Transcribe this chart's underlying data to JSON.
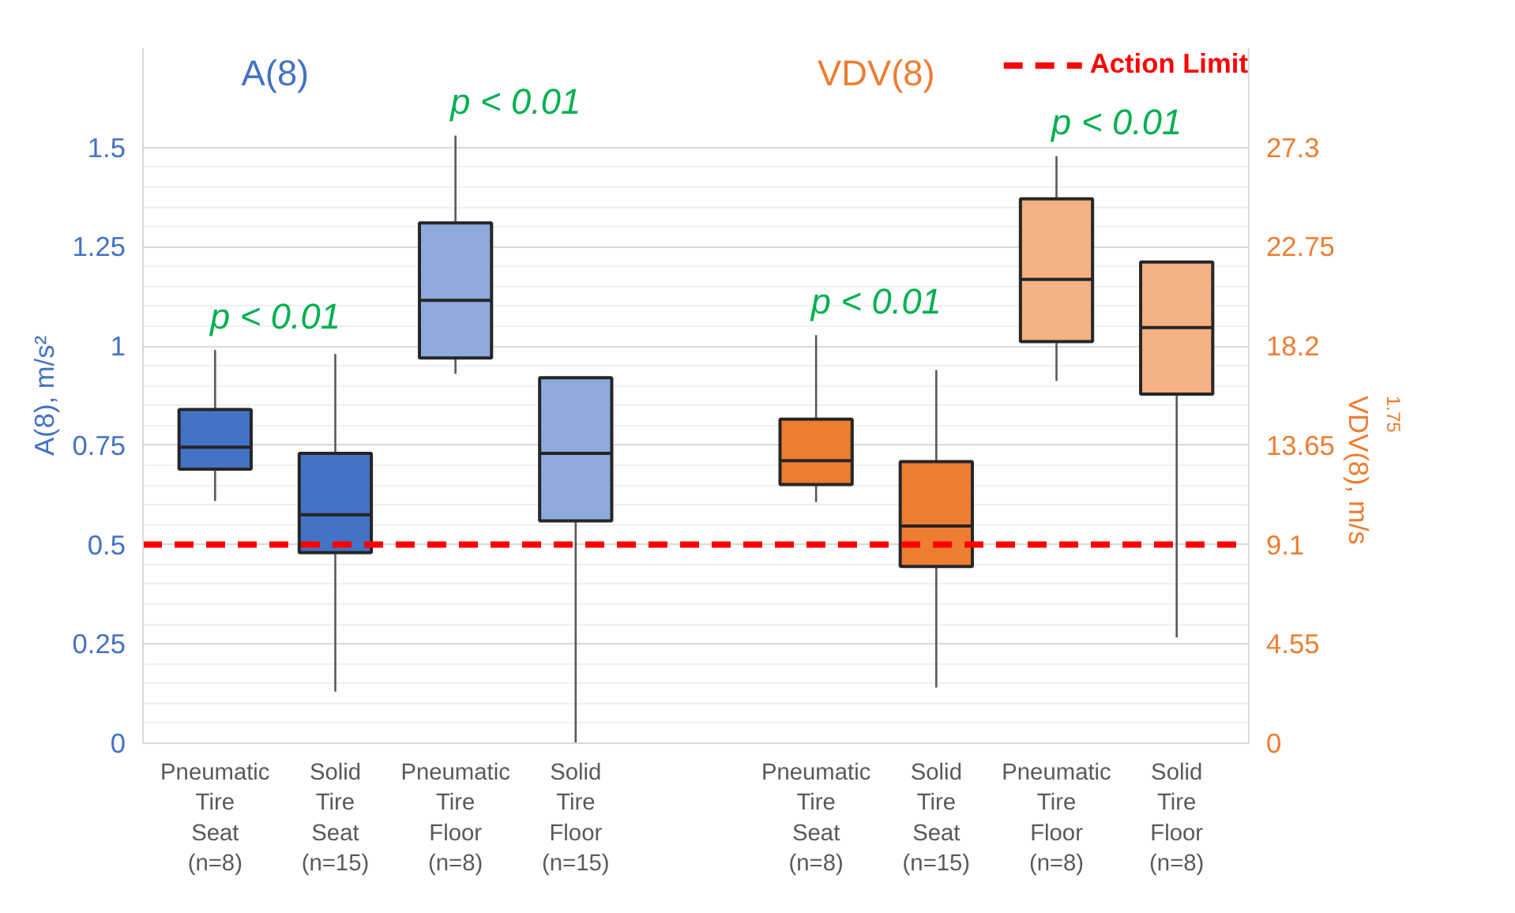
{
  "chart_data": {
    "type": "box",
    "categories": [
      "Pneumatic\nTire\nSeat\n(n=8)",
      "Solid\nTire\nSeat\n(n=15)",
      "Pneumatic\nTire\nFloor\n(n=8)",
      "Solid\nTire\nFloor\n(n=15)",
      null,
      "Pneumatic\nTire\nSeat\n(n=8)",
      "Solid\nTire\nSeat\n(n=15)",
      "Pneumatic\nTire\nFloor\n(n=8)",
      "Solid\nTire\nFloor\n(n=8)"
    ],
    "series": [
      {
        "name": "A(8)",
        "color": "#4472c4",
        "colors": [
          "#4472c4",
          "#4472c4",
          "#8faadc",
          "#8faadc",
          null,
          null,
          null,
          null,
          null
        ],
        "boxes": [
          {
            "low": 0.61,
            "q1": 0.69,
            "median": 0.745,
            "q3": 0.84,
            "high": 0.99
          },
          {
            "low": 0.13,
            "q1": 0.48,
            "median": 0.575,
            "q3": 0.73,
            "high": 0.98
          },
          {
            "low": 0.93,
            "q1": 0.97,
            "median": 1.115,
            "q3": 1.31,
            "high": 1.53
          },
          {
            "low": 0.0,
            "q1": 0.56,
            "median": 0.73,
            "q3": 0.92,
            "high": 0.92
          },
          null,
          null,
          null,
          null,
          null
        ]
      },
      {
        "name": "VDV(8)",
        "color": "#ed7d31",
        "axis": "y2",
        "colors": [
          null,
          null,
          null,
          null,
          null,
          "#ed7d31",
          "#ed7d31",
          "#f4b183",
          "#f4b183"
        ],
        "boxes": [
          null,
          null,
          null,
          null,
          null,
          {
            "low": 11.05,
            "q1": 11.85,
            "median": 12.95,
            "q3": 14.85,
            "high": 18.7
          },
          {
            "low": 2.55,
            "q1": 8.1,
            "median": 9.95,
            "q3": 12.9,
            "high": 17.1
          },
          {
            "low": 16.6,
            "q1": 18.4,
            "median": 21.25,
            "q3": 24.95,
            "high": 26.9
          },
          {
            "low": 4.85,
            "q1": 16.0,
            "median": 19.05,
            "q3": 22.05,
            "high": 22.05
          }
        ]
      }
    ],
    "ylabel": "A(8), m/s²",
    "y2label": "VDV(8), m/s$^{1.75}$",
    "ylim": [
      0,
      1.75
    ],
    "yticks": [
      0,
      0.25,
      0.5,
      0.75,
      1,
      1.25,
      1.5
    ],
    "y2lim": [
      0,
      31.85
    ],
    "y2ticks": [
      0,
      4.55,
      9.1,
      13.65,
      18.2,
      22.75,
      27.3
    ],
    "ref_lines": [
      {
        "axis": "y",
        "value": 0.5,
        "label": "Action Limit",
        "color": "#ff0000",
        "line_style": "dashed"
      }
    ],
    "annotations": [
      "p < 0.01",
      "p < 0.01",
      "p < 0.01",
      "p < 0.01"
    ],
    "grid": "y",
    "legend": "top right"
  }
}
